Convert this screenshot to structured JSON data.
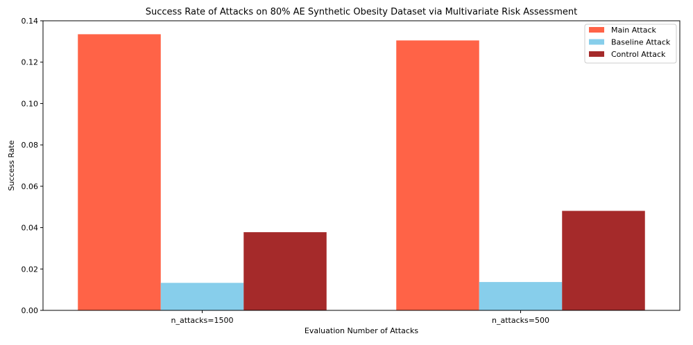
{
  "chart_data": {
    "type": "bar",
    "title": "Success Rate of Attacks on 80% AE Synthetic Obesity Dataset via Multivariate Risk Assessment",
    "xlabel": "Evaluation Number of Attacks",
    "ylabel": "Success Rate",
    "categories": [
      "n_attacks=1500",
      "n_attacks=500"
    ],
    "series": [
      {
        "name": "Main Attack",
        "color": "#ff6347",
        "values": [
          0.1335,
          0.1305
        ]
      },
      {
        "name": "Baseline Attack",
        "color": "#87ceeb",
        "values": [
          0.0133,
          0.0137
        ]
      },
      {
        "name": "Control Attack",
        "color": "#a52a2a",
        "values": [
          0.0378,
          0.0481
        ]
      }
    ],
    "ylim": [
      0,
      0.14
    ],
    "yticks": [
      "0.00",
      "0.02",
      "0.04",
      "0.06",
      "0.08",
      "0.10",
      "0.12",
      "0.14"
    ],
    "grid": false,
    "legend_position": "top-right"
  }
}
